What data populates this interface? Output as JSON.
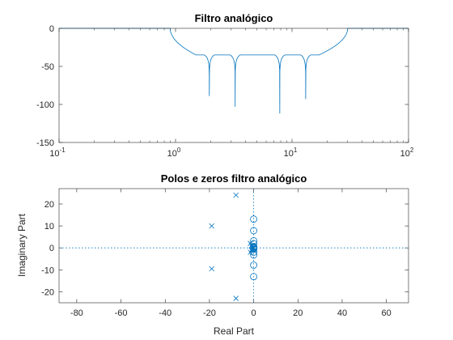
{
  "chart_data": [
    {
      "type": "line",
      "title": "Filtro analógico",
      "xscale": "log",
      "xlim": [
        0.1,
        100
      ],
      "ylim": [
        -150,
        0
      ],
      "xticks": [
        0.1,
        1,
        10,
        100
      ],
      "xtick_labels": [
        {
          "base": "10",
          "exp": "-1"
        },
        {
          "base": "10",
          "exp": "0"
        },
        {
          "base": "10",
          "exp": "1"
        },
        {
          "base": "10",
          "exp": "2"
        }
      ],
      "yticks": [
        0,
        -50,
        -100,
        -150
      ],
      "ytick_labels": [
        "0",
        "-50",
        "-100",
        "-150"
      ],
      "color": "#0072BD",
      "passband_edges": [
        0.9,
        30
      ],
      "transition_lower": [
        0.9,
        1.5
      ],
      "transition_upper": [
        17,
        30
      ],
      "stopband_ripple_db": -35,
      "notches": [
        {
          "freq": 1.95,
          "depth": -89
        },
        {
          "freq": 3.25,
          "depth": -103
        },
        {
          "freq": 7.85,
          "depth": -112
        },
        {
          "freq": 13.1,
          "depth": -93
        }
      ]
    },
    {
      "type": "scatter",
      "title": "Polos e zeros filtro analógico",
      "xlabel": "Real Part",
      "ylabel": "Imaginary Part",
      "xlim": [
        -88,
        70
      ],
      "ylim": [
        -25,
        27
      ],
      "xticks": [
        -80,
        -60,
        -40,
        -20,
        0,
        20,
        40,
        60
      ],
      "xtick_labels": [
        "-80",
        "-60",
        "-40",
        "-20",
        "0",
        "20",
        "40",
        "60"
      ],
      "yticks": [
        20,
        10,
        0,
        -10,
        -20
      ],
      "ytick_labels": [
        "20",
        "10",
        "0",
        "-10",
        "-20"
      ],
      "color": "#0072BD",
      "poles": [
        {
          "x": -8,
          "y": 24
        },
        {
          "x": -19,
          "y": 10
        },
        {
          "x": -19,
          "y": -9.5
        },
        {
          "x": -8,
          "y": -23
        },
        {
          "x": -1.5,
          "y": 2
        },
        {
          "x": -1.5,
          "y": -2
        },
        {
          "x": -1,
          "y": 1
        },
        {
          "x": -1,
          "y": -1
        },
        {
          "x": -0.5,
          "y": 0
        },
        {
          "x": -0.2,
          "y": 0.5
        },
        {
          "x": -0.2,
          "y": -0.5
        }
      ],
      "zeros": [
        {
          "x": 0,
          "y": 13.1
        },
        {
          "x": 0,
          "y": -13.1
        },
        {
          "x": 0,
          "y": 7.85
        },
        {
          "x": 0,
          "y": -7.85
        },
        {
          "x": 0,
          "y": 3.25
        },
        {
          "x": 0,
          "y": -3.25
        },
        {
          "x": 0,
          "y": 1.95
        },
        {
          "x": 0,
          "y": -1.95
        },
        {
          "x": 0,
          "y": 0.6
        },
        {
          "x": 0,
          "y": -0.6
        },
        {
          "x": 0,
          "y": 0.2
        },
        {
          "x": 0,
          "y": -0.2
        }
      ]
    }
  ]
}
